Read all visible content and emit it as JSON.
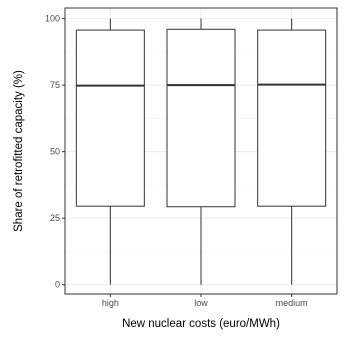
{
  "chart_data": {
    "type": "box",
    "title": "",
    "xlabel": "New nuclear costs (euro/MWh)",
    "ylabel": "Share of retrofitted capacity (%)",
    "categories": [
      "high",
      "low",
      "medium"
    ],
    "boxes": [
      {
        "category": "high",
        "min": 0,
        "q1": 29.5,
        "median": 74.8,
        "q3": 95.7,
        "max": 100
      },
      {
        "category": "low",
        "min": 0,
        "q1": 29.3,
        "median": 75.0,
        "q3": 96.0,
        "max": 100
      },
      {
        "category": "medium",
        "min": 0,
        "q1": 29.5,
        "median": 75.2,
        "q3": 95.7,
        "max": 100
      }
    ],
    "ylim": [
      -3.5,
      104
    ],
    "yticks": [
      0,
      25,
      50,
      75,
      100
    ],
    "grid": true,
    "legend": "none",
    "colors": {
      "panel_border": "#333333",
      "grid_major": "#ebebeb",
      "grid_minor": "#f5f5f5",
      "box_fill": "#ffffff",
      "box_line": "#333333",
      "median_line": "#333333"
    }
  }
}
